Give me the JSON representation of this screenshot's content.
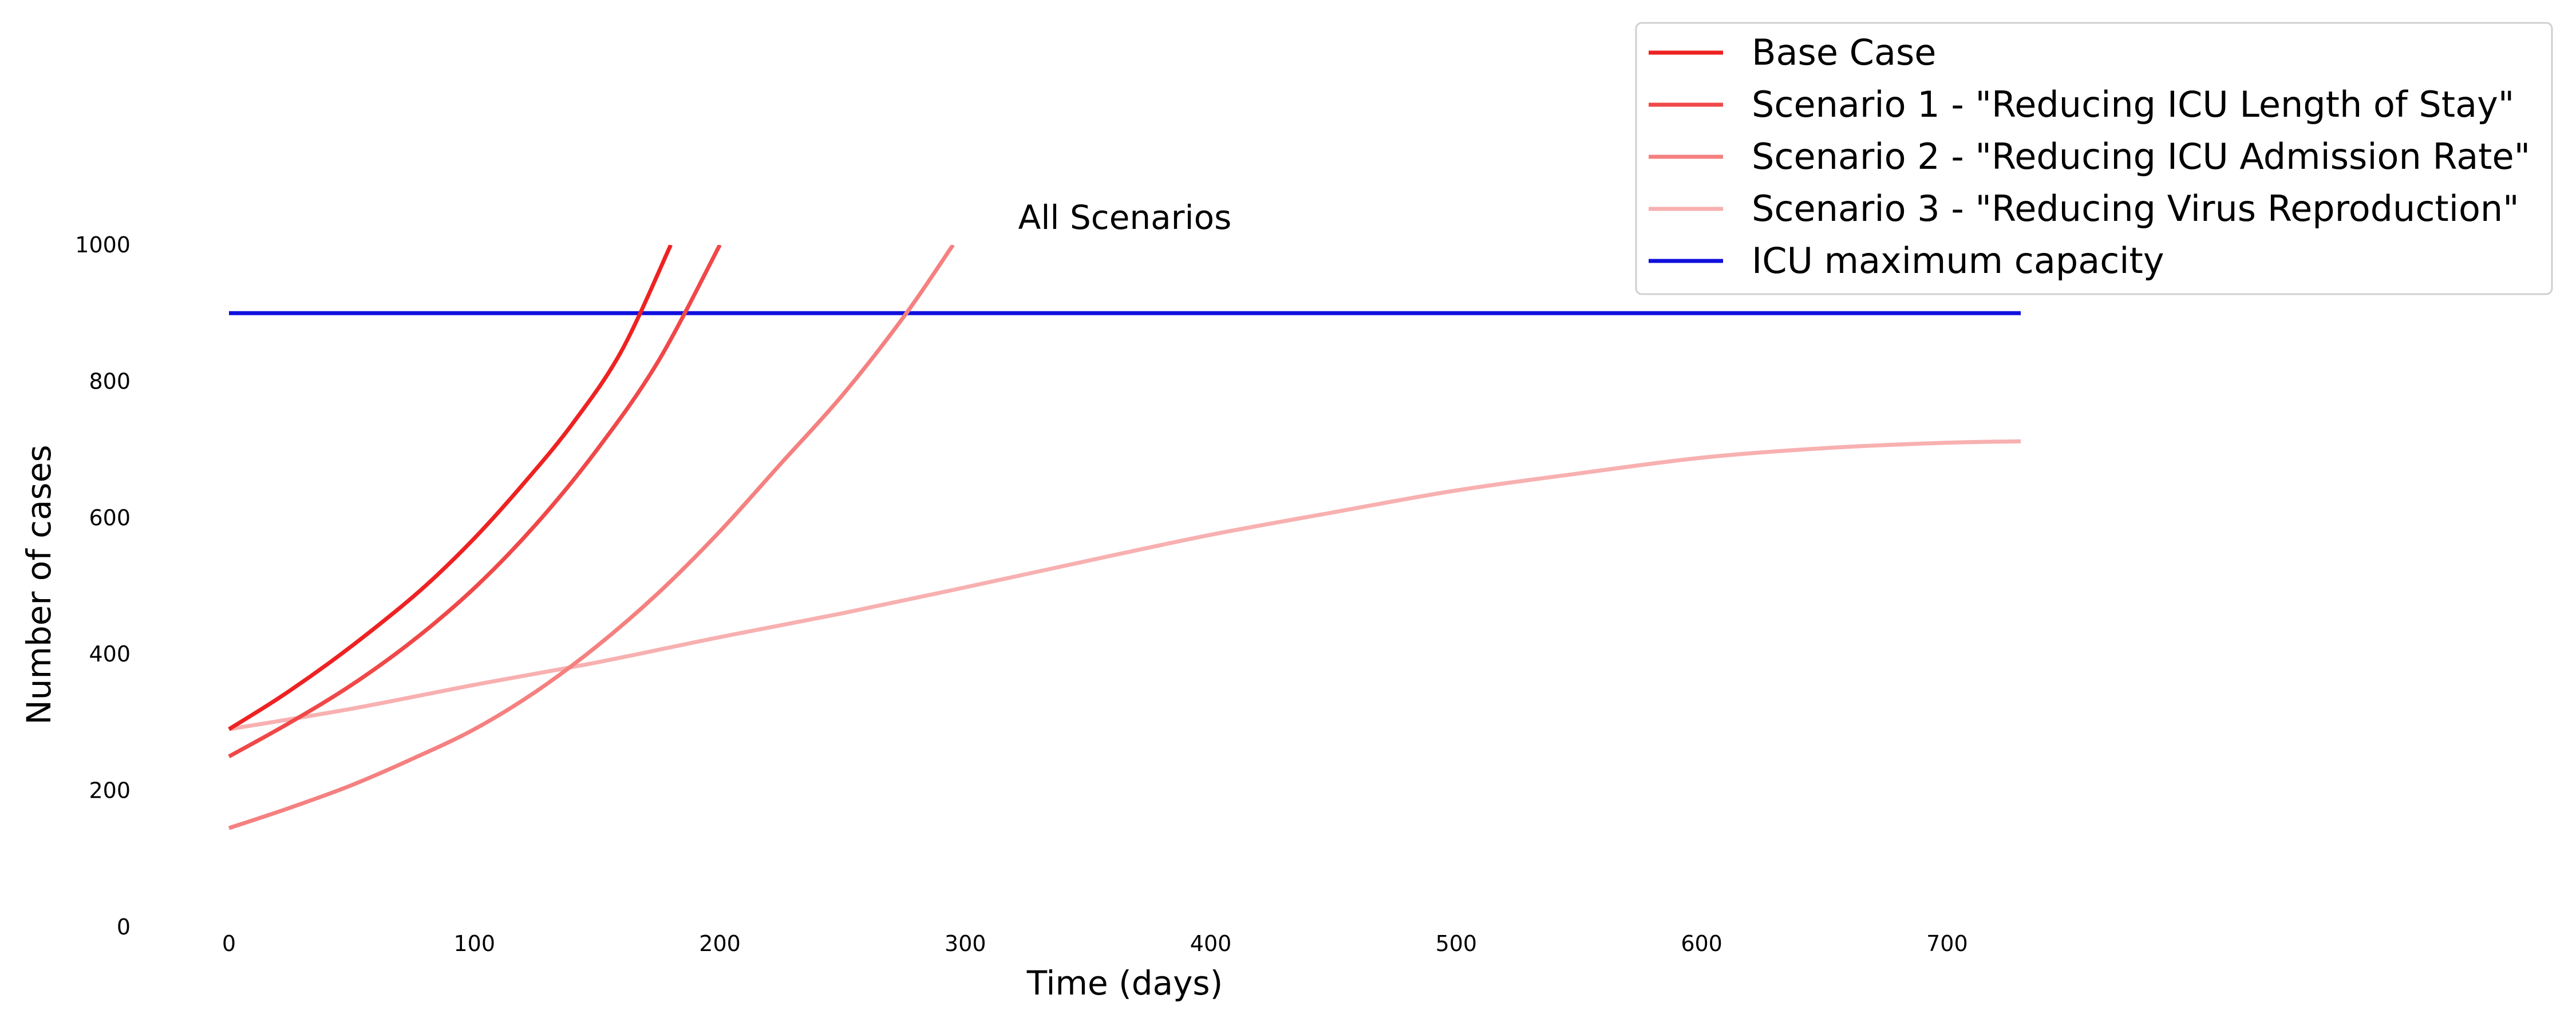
{
  "chart_data": {
    "type": "line",
    "title": "All Scenarios",
    "xlabel": "Time (days)",
    "ylabel": "Number of cases",
    "xlim": [
      0,
      730
    ],
    "ylim": [
      0,
      1000
    ],
    "xticks": [
      0,
      100,
      200,
      300,
      400,
      500,
      600,
      700
    ],
    "yticks": [
      0,
      200,
      400,
      600,
      800,
      1000
    ],
    "grid": false,
    "legend_position": "top-right",
    "series": [
      {
        "name": "Base Case",
        "color": "#ee2222",
        "x": [
          0,
          20,
          40,
          60,
          80,
          100,
          120,
          140,
          160,
          180
        ],
        "y": [
          290,
          335,
          385,
          440,
          500,
          570,
          650,
          738,
          845,
          1000
        ]
      },
      {
        "name": "Scenario 1 - \"Reducing ICU Length of Stay\"",
        "color": "#f04848",
        "x": [
          0,
          25,
          50,
          75,
          100,
          125,
          150,
          175,
          200
        ],
        "y": [
          250,
          300,
          355,
          420,
          497,
          590,
          700,
          830,
          1000
        ]
      },
      {
        "name": "Scenario 2 - \"Reducing ICU Admission Rate\"",
        "color": "#f58080",
        "x": [
          0,
          25,
          50,
          75,
          100,
          125,
          150,
          175,
          200,
          225,
          250,
          275,
          295
        ],
        "y": [
          145,
          175,
          208,
          247,
          290,
          345,
          412,
          490,
          580,
          680,
          780,
          895,
          1000
        ]
      },
      {
        "name": "Scenario 3 - \"Reducing Virus Reproduction\"",
        "color": "#f8b0b0",
        "x": [
          0,
          50,
          100,
          150,
          200,
          250,
          300,
          350,
          400,
          450,
          500,
          550,
          600,
          650,
          700,
          730
        ],
        "y": [
          290,
          320,
          355,
          388,
          425,
          460,
          498,
          537,
          575,
          608,
          640,
          665,
          688,
          702,
          710,
          712
        ]
      },
      {
        "name": "ICU maximum capacity",
        "color": "#1010dd",
        "x": [
          0,
          730
        ],
        "y": [
          900,
          900
        ]
      }
    ]
  }
}
